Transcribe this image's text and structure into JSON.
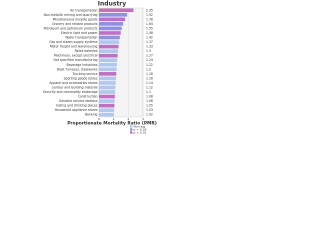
{
  "chart_data": {
    "type": "hbar",
    "title": "Industry",
    "x_label": "Proportionate Mortality Ratio (PMR)",
    "categories": [
      "Air transportation",
      "Non-metallic mining and quarrying",
      "Miscellaneous durable goods",
      "Grocery and related products",
      "Petroleum and petroleum products",
      "Electric light and power",
      "Water transportation",
      "Gas and steam supply systems",
      "Motor freight and warehousing",
      "Retail bakeries",
      "Machinery, except electrical",
      "Not specified manufacturing",
      "Beverage industries",
      "Blast furnaces, steelworks",
      "Trucking service",
      "Sporting goods stores",
      "Apparel and accessories stores",
      "Lumber and building material",
      "Security and commodity brokerage",
      "Construction",
      "Gasoline service stations",
      "Eating and drinking places",
      "Household appliance stores",
      "Banking"
    ],
    "values": [
      2.35,
      1.92,
      1.78,
      1.64,
      1.55,
      1.48,
      1.42,
      1.37,
      1.33,
      1.3,
      1.27,
      1.24,
      1.22,
      1.2,
      1.18,
      1.16,
      1.14,
      1.12,
      1.1,
      1.08,
      1.06,
      1.05,
      1.03,
      1.02
    ],
    "colors": [
      "#c070c0",
      "#9090e0",
      "#c070c0",
      "#9090e0",
      "#9090e0",
      "#c070c0",
      "#9090e0",
      "#b0c8f0",
      "#c070c0",
      "#b0c8f0",
      "#c070c0",
      "#b0c8f0",
      "#b0c8f0",
      "#b0c8f0",
      "#c070c0",
      "#b0c8f0",
      "#b0c8f0",
      "#b0c8f0",
      "#b0c8f0",
      "#c070c0",
      "#b0c8f0",
      "#c070c0",
      "#b0c8f0",
      "#b0c8f0"
    ],
    "xlim": [
      0,
      3
    ],
    "xticks": [
      0,
      1,
      2,
      3
    ],
    "legend": [
      {
        "name": "Non-sig",
        "color": "#b0c8f0"
      },
      {
        "name": "p < 0.05",
        "color": "#9090e0"
      },
      {
        "name": "p < 0.01",
        "color": "#c070c0"
      }
    ]
  }
}
